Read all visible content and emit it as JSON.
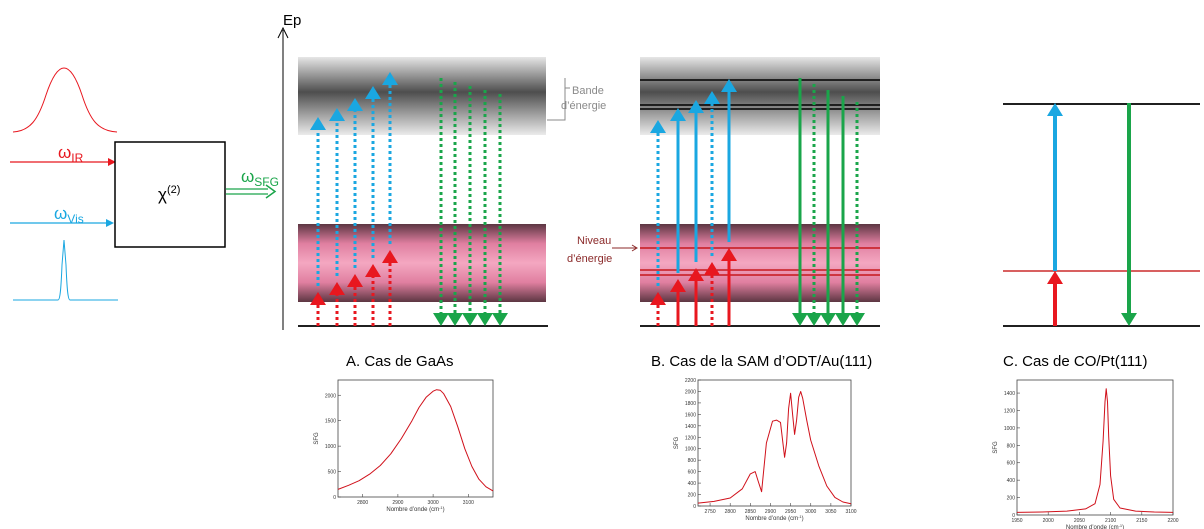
{
  "colors": {
    "red": "#e8171f",
    "blue": "#1aa7e1",
    "green": "#1aa54a",
    "gray_label": "#8a8a8a",
    "maroon_label": "#8b2a2a"
  },
  "schematic": {
    "ir_label": "ω",
    "ir_sub": "IR",
    "vis_label": "ω",
    "vis_sub": "Vis",
    "sfg_label": "ω",
    "sfg_sub": "SFG",
    "chi_label": "χ",
    "chi_sup": "(2)"
  },
  "axis": {
    "ep_label": "Ep"
  },
  "annotations": {
    "bande_line1": "Bande",
    "bande_line2": "d’énergie",
    "niveau_line1": "Niveau",
    "niveau_line2": "d’énergie"
  },
  "panels": {
    "a_caption": "A. Cas de GaAs",
    "b_caption": "B. Cas de la SAM d’ODT/Au(111)",
    "c_caption": "C. Cas de CO/Pt(111)"
  },
  "chart_data": [
    {
      "type": "line",
      "xlabel": "Nombre d’onde (cm",
      "xlabel_sup": "-1",
      "xlabel_end": ")",
      "ylabel": "SFG",
      "xlim": [
        2730,
        3170
      ],
      "ylim": [
        0,
        2300
      ],
      "xticks": [
        2800,
        2900,
        3000,
        3100
      ],
      "xtick_labels": [
        "2800",
        "2900",
        "3000",
        "3100"
      ],
      "yticks": [
        0,
        500,
        1000,
        1500,
        2000
      ],
      "ytick_labels": [
        "0",
        "500",
        "1000",
        "1500",
        "2000"
      ],
      "x": [
        2730,
        2760,
        2790,
        2820,
        2850,
        2880,
        2910,
        2940,
        2960,
        2980,
        3000,
        3010,
        3020,
        3030,
        3050,
        3070,
        3090,
        3110,
        3130,
        3150,
        3170
      ],
      "y": [
        150,
        230,
        320,
        450,
        620,
        850,
        1150,
        1500,
        1760,
        1960,
        2080,
        2110,
        2100,
        2030,
        1780,
        1380,
        950,
        600,
        350,
        200,
        120
      ]
    },
    {
      "type": "line",
      "xlabel": "Nombre d’onde (cm",
      "xlabel_sup": "-1",
      "xlabel_end": ")",
      "ylabel": "SFG",
      "xlim": [
        2720,
        3100
      ],
      "ylim": [
        0,
        2200
      ],
      "xticks": [
        2750,
        2800,
        2850,
        2900,
        2950,
        3000,
        3050,
        3100
      ],
      "xtick_labels": [
        "2750",
        "2800",
        "2850",
        "2900",
        "2950",
        "3000",
        "3050",
        "3100"
      ],
      "yticks": [
        0,
        200,
        400,
        600,
        800,
        1000,
        1200,
        1400,
        1600,
        1800,
        2000,
        2200
      ],
      "ytick_labels": [
        "0",
        "200",
        "400",
        "600",
        "800",
        "1000",
        "1200",
        "1400",
        "1600",
        "1800",
        "2000",
        "2200"
      ],
      "x": [
        2720,
        2760,
        2800,
        2830,
        2850,
        2862,
        2870,
        2878,
        2890,
        2905,
        2915,
        2925,
        2935,
        2940,
        2945,
        2950,
        2955,
        2960,
        2965,
        2970,
        2975,
        2980,
        2990,
        3000,
        3020,
        3040,
        3060,
        3080,
        3100
      ],
      "y": [
        50,
        80,
        140,
        300,
        560,
        600,
        420,
        250,
        1100,
        1480,
        1500,
        1460,
        850,
        1100,
        1700,
        1970,
        1600,
        1250,
        1500,
        1900,
        2000,
        1880,
        1500,
        1150,
        700,
        350,
        150,
        70,
        40
      ]
    },
    {
      "type": "line",
      "xlabel": "Nombre d’onde (cm",
      "xlabel_sup": "-1",
      "xlabel_end": ")",
      "ylabel": "SFG",
      "xlim": [
        1950,
        2200
      ],
      "ylim": [
        0,
        1550
      ],
      "xticks": [
        1950,
        2000,
        2050,
        2100,
        2150,
        2200
      ],
      "xtick_labels": [
        "1950",
        "2000",
        "2050",
        "2100",
        "2150",
        "2200"
      ],
      "yticks": [
        0,
        200,
        400,
        600,
        800,
        1000,
        1200,
        1400
      ],
      "ytick_labels": [
        "0",
        "200",
        "400",
        "600",
        "800",
        "1000",
        "1200",
        "1400"
      ],
      "x": [
        1950,
        1990,
        2030,
        2060,
        2075,
        2083,
        2088,
        2091,
        2093,
        2095,
        2097,
        2100,
        2105,
        2115,
        2140,
        2170,
        2200
      ],
      "y": [
        30,
        35,
        45,
        70,
        130,
        350,
        850,
        1300,
        1450,
        1300,
        900,
        450,
        180,
        80,
        45,
        35,
        30
      ]
    }
  ]
}
